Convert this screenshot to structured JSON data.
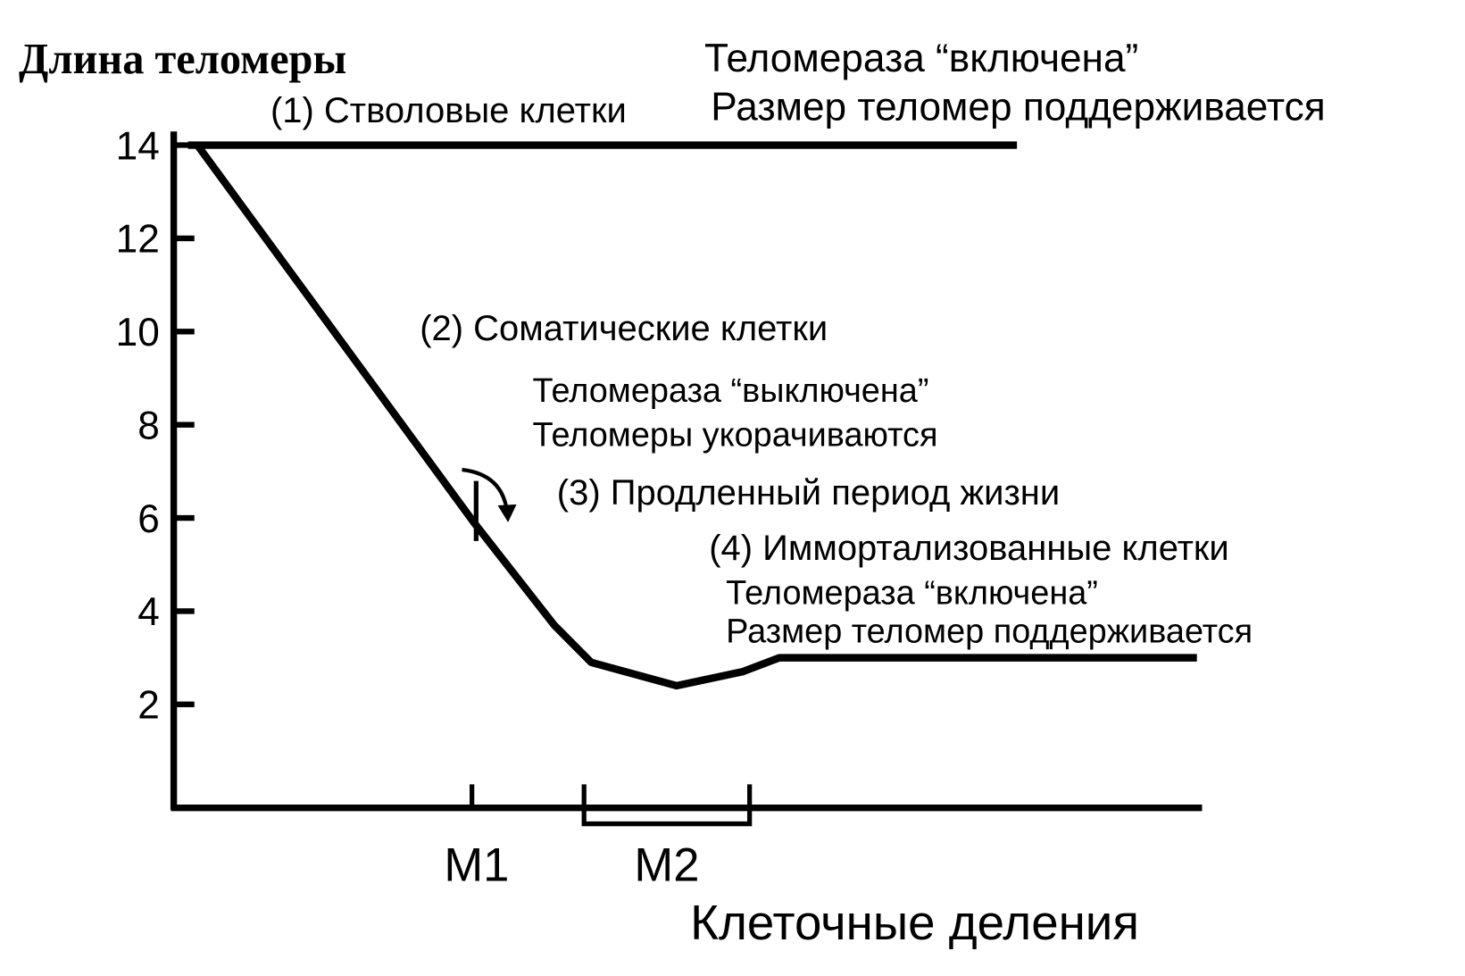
{
  "chart_data": {
    "type": "line",
    "title": "Длина теломеры",
    "x_label": "Клеточные деления",
    "xlim": [
      0,
      100
    ],
    "ylim": [
      -0.2,
      14.3
    ],
    "yticks": [
      14,
      12,
      10,
      8,
      6,
      4,
      2
    ],
    "series": [
      {
        "name": "(1) Стволовые клетки",
        "color": "#000000",
        "x": [
          1.4,
          82
        ],
        "values": [
          14,
          14
        ]
      },
      {
        "name": "(2) Соматические клетки",
        "color": "#000000",
        "x": [
          2.3,
          29.2,
          37,
          40.6,
          48.9,
          55.3,
          58.9,
          99.5
        ],
        "values": [
          14,
          5.9,
          3.7,
          2.9,
          2.4,
          2.7,
          3.0,
          3.0
        ]
      }
    ],
    "markers": [
      {
        "label": "M1",
        "x": 29
      },
      {
        "label": "M2",
        "x_range": [
          39.9,
          56
        ]
      }
    ],
    "annotations": [
      "Теломераза “включена”",
      "Размер теломер поддерживается",
      "Теломераза “выключена”",
      "Теломеры укорачиваются",
      "(3) Продленный период жизни",
      "(4) Иммортализованные клетки",
      "Теломераза “включена”",
      "Размер теломер поддерживается"
    ]
  }
}
